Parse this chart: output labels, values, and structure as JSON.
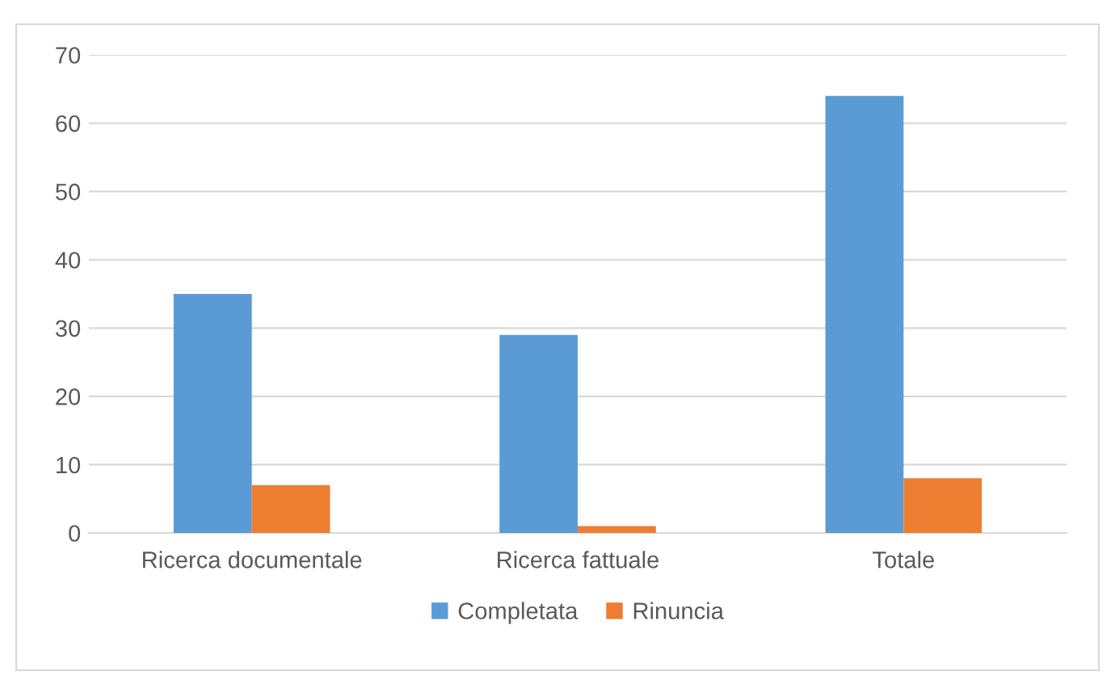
{
  "chart_data": {
    "type": "bar",
    "categories": [
      "Ricerca documentale",
      "Ricerca fattuale",
      "Totale"
    ],
    "series": [
      {
        "name": "Completata",
        "color": "#5b9bd5",
        "values": [
          35,
          29,
          64
        ]
      },
      {
        "name": "Rinuncia",
        "color": "#ed7d31",
        "values": [
          7,
          1,
          8
        ]
      }
    ],
    "ylim": [
      0,
      70
    ],
    "yticks": [
      0,
      10,
      20,
      30,
      40,
      50,
      60,
      70
    ],
    "grid": "y",
    "legend": "bottom"
  }
}
